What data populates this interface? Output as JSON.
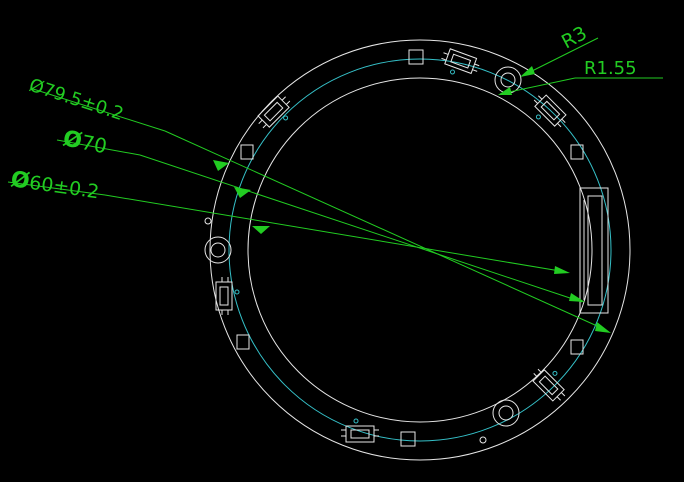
{
  "dimensions": {
    "outer_diameter": {
      "prefix": "Ø",
      "value": "79.5±0.2"
    },
    "mid_diameter": {
      "prefix": "Ø",
      "value": "70"
    },
    "inner_diameter": {
      "prefix": "Ø",
      "value": "60±0.2"
    },
    "hole_radius": "R3",
    "small_hole_radius": "R1.55"
  },
  "colors": {
    "background": "#000000",
    "outline": "#e6e6e6",
    "trace": "#35c0c8",
    "dimension": "#22cc22"
  }
}
